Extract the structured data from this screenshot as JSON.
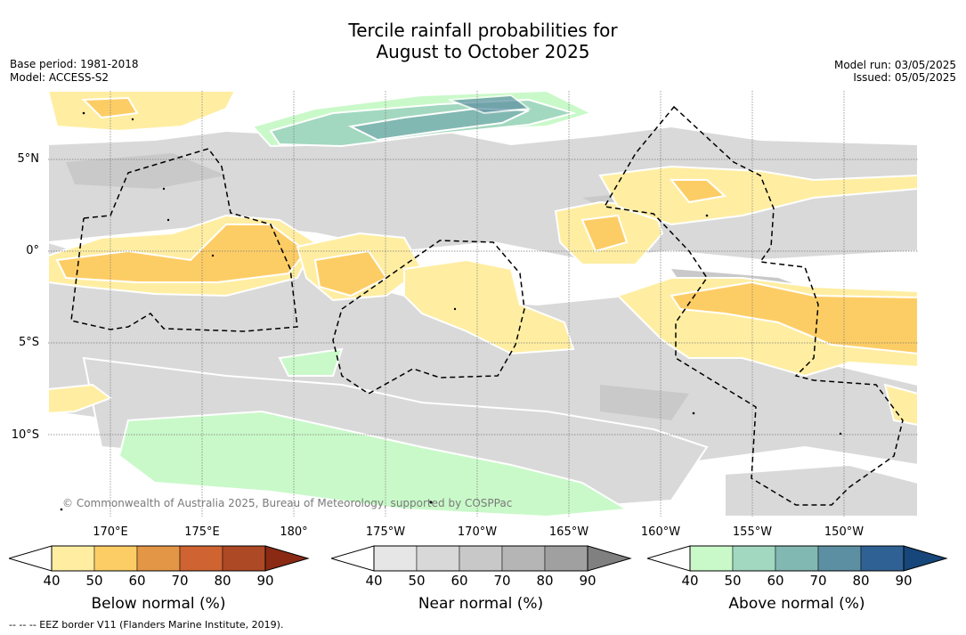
{
  "title_line1": "Tercile rainfall probabilities for",
  "title_line2": "August to October 2025",
  "meta_left": {
    "base_period": "Base period: 1981-2018",
    "model": "Model: ACCESS-S2"
  },
  "meta_right": {
    "model_run": "Model run: 03/05/2025",
    "issued": "Issued: 05/05/2025"
  },
  "lat_labels": [
    "5°N",
    "0°",
    "5°S",
    "10°S"
  ],
  "lon_labels": [
    "170°E",
    "175°E",
    "180°",
    "175°W",
    "170°W",
    "165°W",
    "160°W",
    "155°W",
    "150°W"
  ],
  "copyright": "© Commonwealth of Australia 2025, Bureau of Meteorology, supported by COSPPac",
  "colorbars": [
    {
      "label": "Below normal (%)",
      "ticks": [
        "40",
        "50",
        "60",
        "70",
        "80",
        "90"
      ],
      "colors": [
        "#ffeea2",
        "#fdcd65",
        "#e39646",
        "#cf6331",
        "#ad4924",
        "#8a2a14"
      ]
    },
    {
      "label": "Near normal (%)",
      "ticks": [
        "40",
        "50",
        "60",
        "70",
        "80",
        "90"
      ],
      "colors": [
        "#e6e6e6",
        "#d8d8d8",
        "#c8c8c8",
        "#b5b5b5",
        "#a0a0a0",
        "#808080"
      ]
    },
    {
      "label": "Above normal (%)",
      "ticks": [
        "40",
        "50",
        "60",
        "70",
        "80",
        "90"
      ],
      "colors": [
        "#c9f9c9",
        "#a2d8bf",
        "#82b8b2",
        "#5c8fa2",
        "#2f6194",
        "#16467a"
      ]
    }
  ],
  "footnote": "--  --  -- EEZ border V11 (Flanders Marine Institute, 2019)."
}
